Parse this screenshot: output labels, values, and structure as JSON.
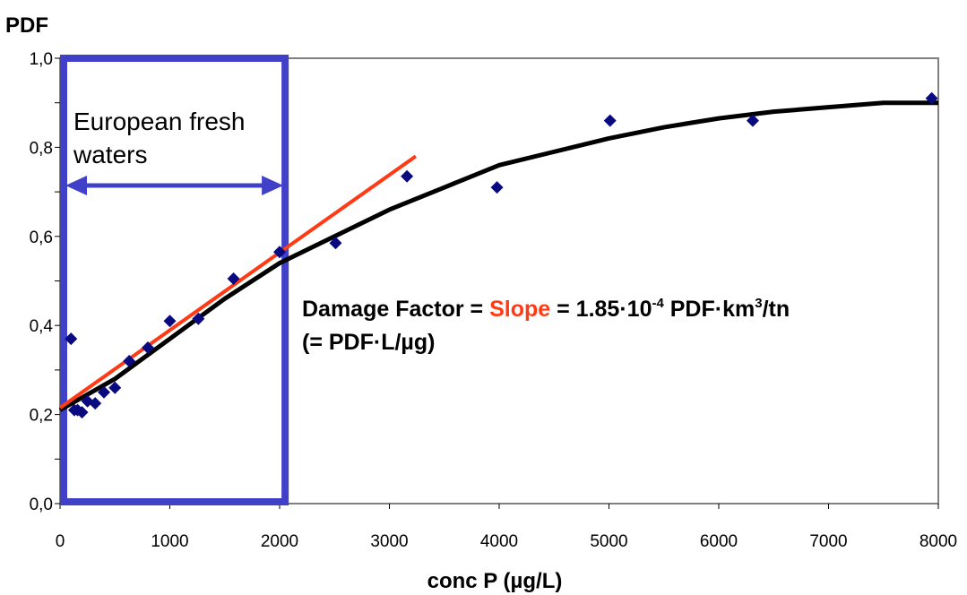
{
  "chart_data": {
    "type": "scatter",
    "ylabel": "PDF",
    "xlabel": "conc P (µg/L)",
    "xlim": [
      0,
      8000
    ],
    "ylim": [
      0,
      1.0
    ],
    "x_ticks": [
      "0",
      "1000",
      "2000",
      "3000",
      "4000",
      "5000",
      "6000",
      "7000",
      "8000"
    ],
    "y_ticks": [
      "0,0",
      "0,2",
      "0,4",
      "0,6",
      "0,8",
      "1,0"
    ],
    "grid": false,
    "points": [
      {
        "x": 100,
        "y": 0.37
      },
      {
        "x": 130,
        "y": 0.21
      },
      {
        "x": 160,
        "y": 0.21
      },
      {
        "x": 200,
        "y": 0.205
      },
      {
        "x": 250,
        "y": 0.23
      },
      {
        "x": 320,
        "y": 0.225
      },
      {
        "x": 400,
        "y": 0.25
      },
      {
        "x": 500,
        "y": 0.26
      },
      {
        "x": 630,
        "y": 0.32
      },
      {
        "x": 800,
        "y": 0.35
      },
      {
        "x": 1000,
        "y": 0.41
      },
      {
        "x": 1260,
        "y": 0.415
      },
      {
        "x": 1580,
        "y": 0.505
      },
      {
        "x": 2000,
        "y": 0.565
      },
      {
        "x": 2510,
        "y": 0.585
      },
      {
        "x": 3160,
        "y": 0.735
      },
      {
        "x": 3980,
        "y": 0.71
      },
      {
        "x": 5010,
        "y": 0.86
      },
      {
        "x": 6310,
        "y": 0.86
      },
      {
        "x": 7940,
        "y": 0.91
      }
    ],
    "fit_curve": {
      "color": "#000000",
      "points": [
        [
          0,
          0.21
        ],
        [
          500,
          0.28
        ],
        [
          1000,
          0.37
        ],
        [
          1500,
          0.46
        ],
        [
          2000,
          0.54
        ],
        [
          2500,
          0.6
        ],
        [
          3000,
          0.66
        ],
        [
          3500,
          0.71
        ],
        [
          4000,
          0.76
        ],
        [
          4500,
          0.79
        ],
        [
          5000,
          0.82
        ],
        [
          5500,
          0.845
        ],
        [
          6000,
          0.865
        ],
        [
          6500,
          0.88
        ],
        [
          7000,
          0.89
        ],
        [
          7500,
          0.9
        ],
        [
          8000,
          0.9
        ]
      ]
    },
    "slope_line": {
      "color": "#ff3a14",
      "points": [
        [
          0,
          0.215
        ],
        [
          3240,
          0.78
        ]
      ]
    },
    "region": {
      "x_range": [
        0,
        2050
      ],
      "label": "European fresh waters",
      "color": "#4040c8"
    },
    "annotation": {
      "prefix": "Damage Factor = ",
      "highlight": "Slope",
      "middle": " = 1.85·10",
      "sup1": "-4",
      "unit": " PDF·km",
      "sup2": "3",
      "tail": "/tn",
      "line2": "(= PDF·L/µg)",
      "highlight_color": "#ff3a14"
    },
    "colors": {
      "points": "#0a0a80",
      "axes": "#808080"
    }
  },
  "labels": {
    "region_line1": "European fresh",
    "region_line2": "waters"
  }
}
